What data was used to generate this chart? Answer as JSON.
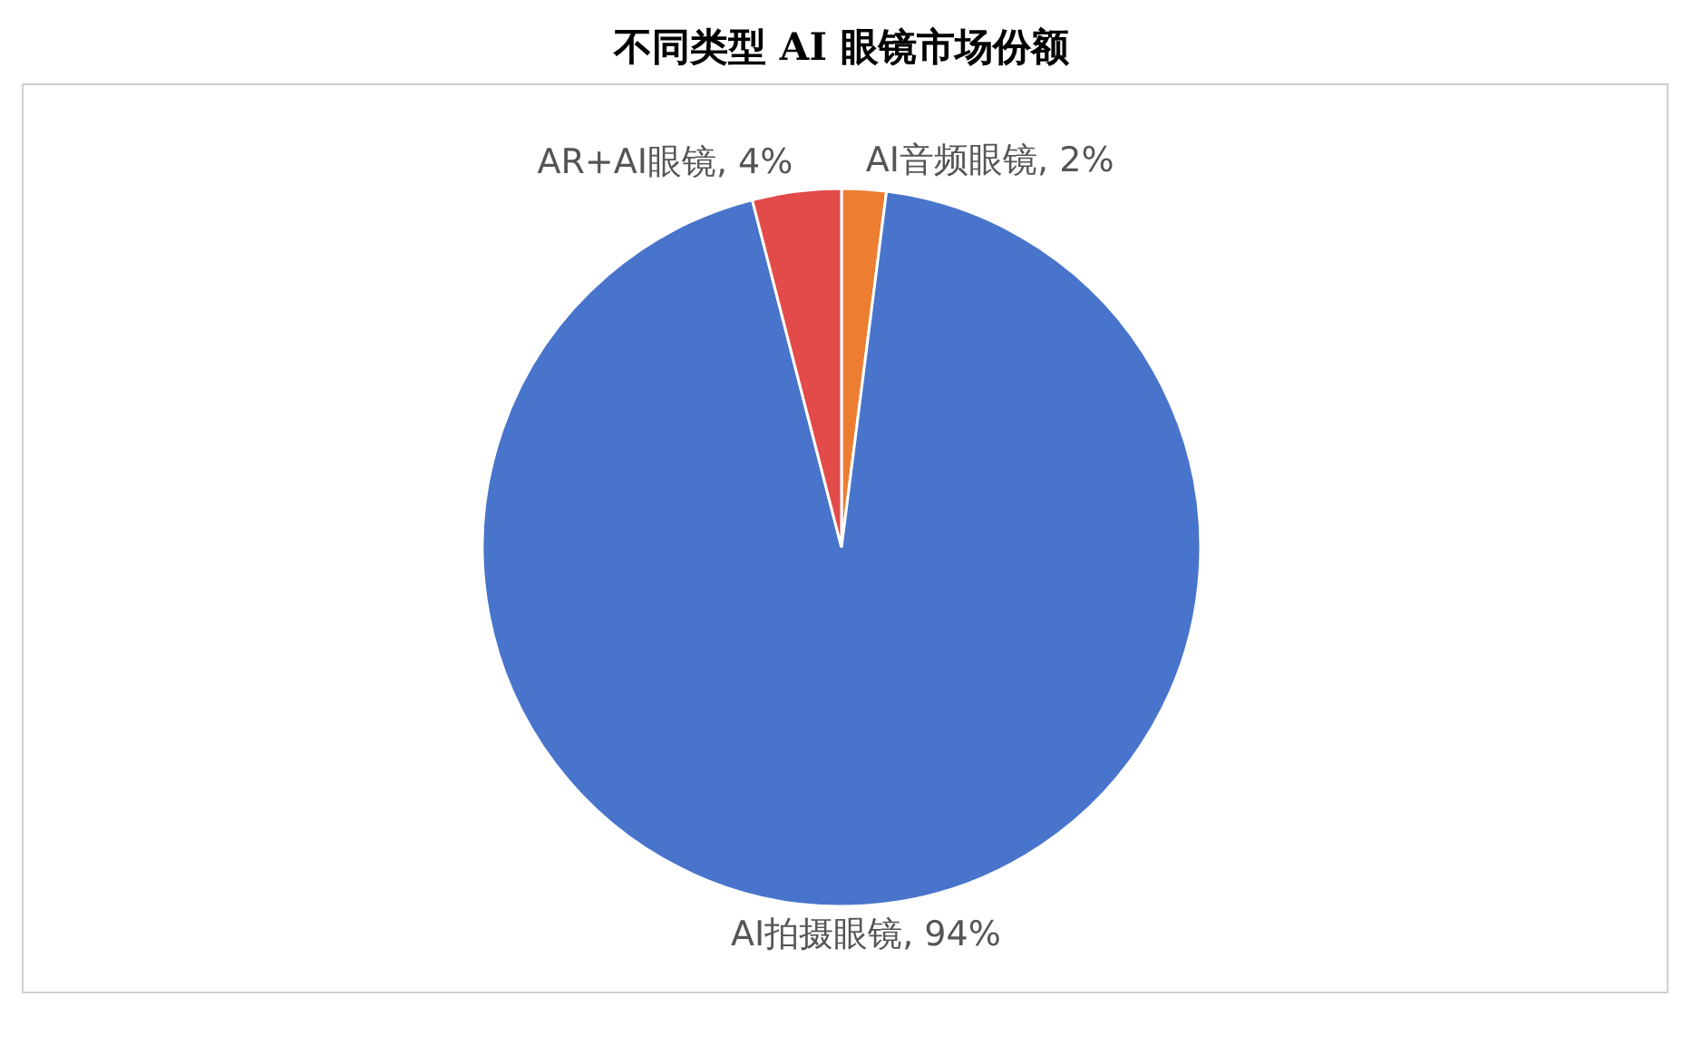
{
  "chart_data": {
    "type": "pie",
    "title": "不同类型 AI 眼镜市场份额",
    "categories": [
      "AI音频眼镜",
      "AI拍摄眼镜",
      "AR+AI眼镜"
    ],
    "values": [
      2,
      94,
      4
    ],
    "value_labels": [
      "2%",
      "94%",
      "4%"
    ],
    "colors": [
      "#ed7d31",
      "#4874cb",
      "#e34a4a"
    ],
    "legend": false
  }
}
